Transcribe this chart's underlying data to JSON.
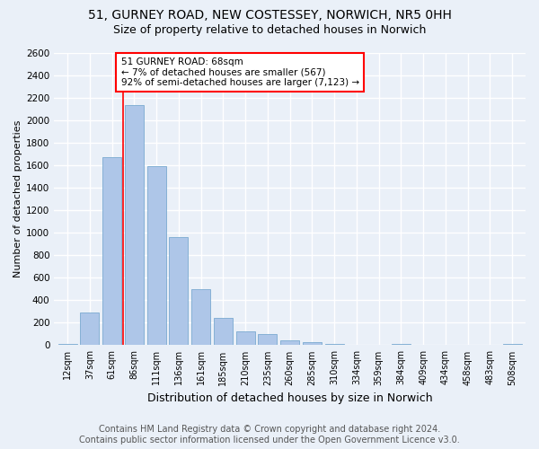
{
  "title1": "51, GURNEY ROAD, NEW COSTESSEY, NORWICH, NR5 0HH",
  "title2": "Size of property relative to detached houses in Norwich",
  "xlabel": "Distribution of detached houses by size in Norwich",
  "ylabel": "Number of detached properties",
  "footer1": "Contains HM Land Registry data © Crown copyright and database right 2024.",
  "footer2": "Contains public sector information licensed under the Open Government Licence v3.0.",
  "categories": [
    "12sqm",
    "37sqm",
    "61sqm",
    "86sqm",
    "111sqm",
    "136sqm",
    "161sqm",
    "185sqm",
    "210sqm",
    "235sqm",
    "260sqm",
    "285sqm",
    "310sqm",
    "334sqm",
    "359sqm",
    "384sqm",
    "409sqm",
    "434sqm",
    "458sqm",
    "483sqm",
    "508sqm"
  ],
  "values": [
    10,
    290,
    1670,
    2140,
    1590,
    960,
    500,
    240,
    120,
    100,
    40,
    30,
    10,
    5,
    5,
    10,
    3,
    3,
    3,
    3,
    10
  ],
  "bar_color": "#aec6e8",
  "bar_edge_color": "#7aaad0",
  "annotation_box_text": [
    "51 GURNEY ROAD: 68sqm",
    "← 7% of detached houses are smaller (567)",
    "92% of semi-detached houses are larger (7,123) →"
  ],
  "annotation_box_color": "white",
  "annotation_box_edge_color": "red",
  "vline_color": "red",
  "vline_x": 2.5,
  "ylim": [
    0,
    2600
  ],
  "yticks": [
    0,
    200,
    400,
    600,
    800,
    1000,
    1200,
    1400,
    1600,
    1800,
    2000,
    2200,
    2400,
    2600
  ],
  "bg_color": "#eaf0f8",
  "plot_bg_color": "#eaf0f8",
  "grid_color": "white",
  "title1_fontsize": 10,
  "title2_fontsize": 9,
  "xlabel_fontsize": 9,
  "ylabel_fontsize": 8,
  "footer_fontsize": 7
}
